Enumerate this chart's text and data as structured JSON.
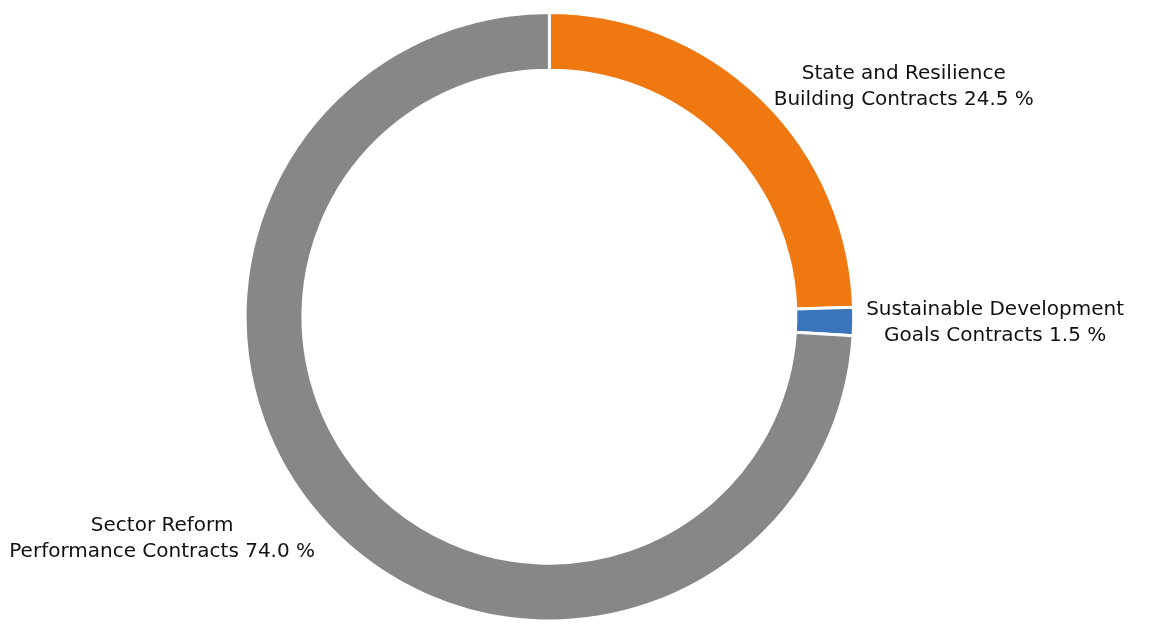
{
  "chart_data": {
    "type": "donut",
    "categories": [
      "State and Resilience\nBuilding Contracts",
      "Sustainable Development\nGoals Contracts",
      "Sector Reform\nPerformance Contracts"
    ],
    "values": [
      24.5,
      1.5,
      74.0
    ],
    "value_labels": [
      "24.5 %",
      "1.5 %",
      "74.0 %"
    ],
    "colors": [
      "#ef7811",
      "#3a74bb",
      "#878787"
    ],
    "legend": false
  }
}
